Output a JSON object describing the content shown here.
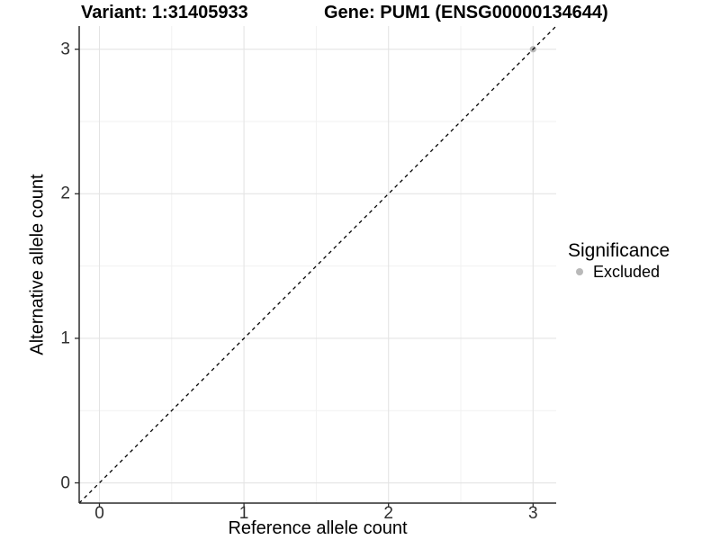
{
  "title_left": "Variant: 1:31405933",
  "title_right": "Gene: PUM1 (ENSG00000134644)",
  "x_axis": {
    "label": "Reference allele count",
    "tick_labels": [
      "0",
      "1",
      "2",
      "3"
    ]
  },
  "y_axis": {
    "label": "Alternative allele count",
    "tick_labels": [
      "0",
      "1",
      "2",
      "3"
    ]
  },
  "legend": {
    "title": "Significance",
    "items": [
      {
        "label": "Excluded",
        "color": "#b9b9b9"
      }
    ]
  },
  "chart_data": {
    "type": "scatter",
    "title": "Variant: 1:31405933    Gene: PUM1 (ENSG00000134644)",
    "xlabel": "Reference allele count",
    "ylabel": "Alternative allele count",
    "xlim": [
      -0.14,
      3.16
    ],
    "ylim": [
      -0.14,
      3.16
    ],
    "x_ticks": [
      0,
      1,
      2,
      3
    ],
    "y_ticks": [
      0,
      1,
      2,
      3
    ],
    "minor_ticks": [
      0.5,
      1.5,
      2.5
    ],
    "grid": true,
    "legend_position": "right",
    "series": [
      {
        "name": "Excluded",
        "color": "#b9b9b9",
        "points": [
          {
            "x": 3,
            "y": 3
          }
        ]
      }
    ],
    "reference_line": {
      "kind": "identity",
      "slope": 1,
      "intercept": 0,
      "style": "dashed",
      "color": "#000000"
    }
  },
  "style": {
    "grid_major_color": "#e4e4e4",
    "grid_minor_color": "#f1f1f1",
    "axis_line_color": "#2b2b2b",
    "tick_label_color": "#303030",
    "point_radius": 3.6,
    "legend_dot_diameter": 8
  }
}
